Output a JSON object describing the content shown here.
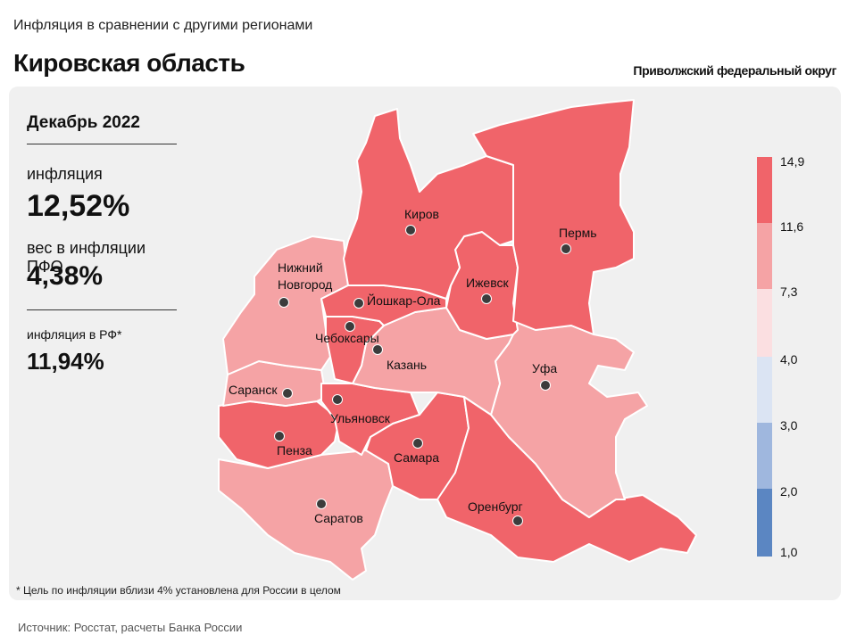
{
  "header": {
    "subtitle": "Инфляция в сравнении с другими регионами",
    "title": "Кировская область",
    "district": "Приволжский федеральный округ"
  },
  "stats": {
    "period": "Декабрь 2022",
    "inflation_label": "инфляция",
    "inflation_value": "12,52%",
    "weight_label": "вес в инфляции ПФО",
    "weight_value": "4,38%",
    "rf_label": "инфляция в РФ*",
    "rf_value": "11,94%"
  },
  "legend": {
    "ticks": [
      "14,9",
      "11,6",
      "7,3",
      "4,0",
      "3,0",
      "2,0",
      "1,0"
    ],
    "colors": [
      "#f0646a",
      "#f5a3a5",
      "#fbdfe1",
      "#dbe4f3",
      "#9fb7de",
      "#5b86c2"
    ]
  },
  "colors": {
    "high": "#f0646a",
    "mid": "#f5a3a5",
    "border": "#ffffff",
    "marker": "#3c3c3c"
  },
  "regions": [
    {
      "name": "Киров",
      "level": "high"
    },
    {
      "name": "Пермь",
      "level": "high"
    },
    {
      "name": "Ижевск",
      "level": "high"
    },
    {
      "name": "Йошкар-Ола",
      "level": "high"
    },
    {
      "name": "Чебоксары",
      "level": "high"
    },
    {
      "name": "Нижний Новгород",
      "level": "mid"
    },
    {
      "name": "Казань",
      "level": "mid"
    },
    {
      "name": "Уфа",
      "level": "mid"
    },
    {
      "name": "Саранск",
      "level": "mid"
    },
    {
      "name": "Ульяновск",
      "level": "high"
    },
    {
      "name": "Пенза",
      "level": "high"
    },
    {
      "name": "Самара",
      "level": "high"
    },
    {
      "name": "Саратов",
      "level": "mid"
    },
    {
      "name": "Оренбург",
      "level": "high"
    }
  ],
  "cities": {
    "kirov": "Киров",
    "perm": "Пермь",
    "izhevsk": "Ижевск",
    "yoshkar_ola": "Йошкар-Ола",
    "nn_line1": "Нижний",
    "nn_line2": "Новгород",
    "cheboksary": "Чебоксары",
    "kazan": "Казань",
    "ufa": "Уфа",
    "saransk": "Саранск",
    "ulyanovsk": "Ульяновск",
    "penza": "Пенза",
    "samara": "Самара",
    "saratov": "Саратов",
    "orenburg": "Оренбург"
  },
  "footnote": "* Цель по инфляции вблизи 4% установлена для России в целом",
  "source": "Источник: Росстат, расчеты Банка России"
}
